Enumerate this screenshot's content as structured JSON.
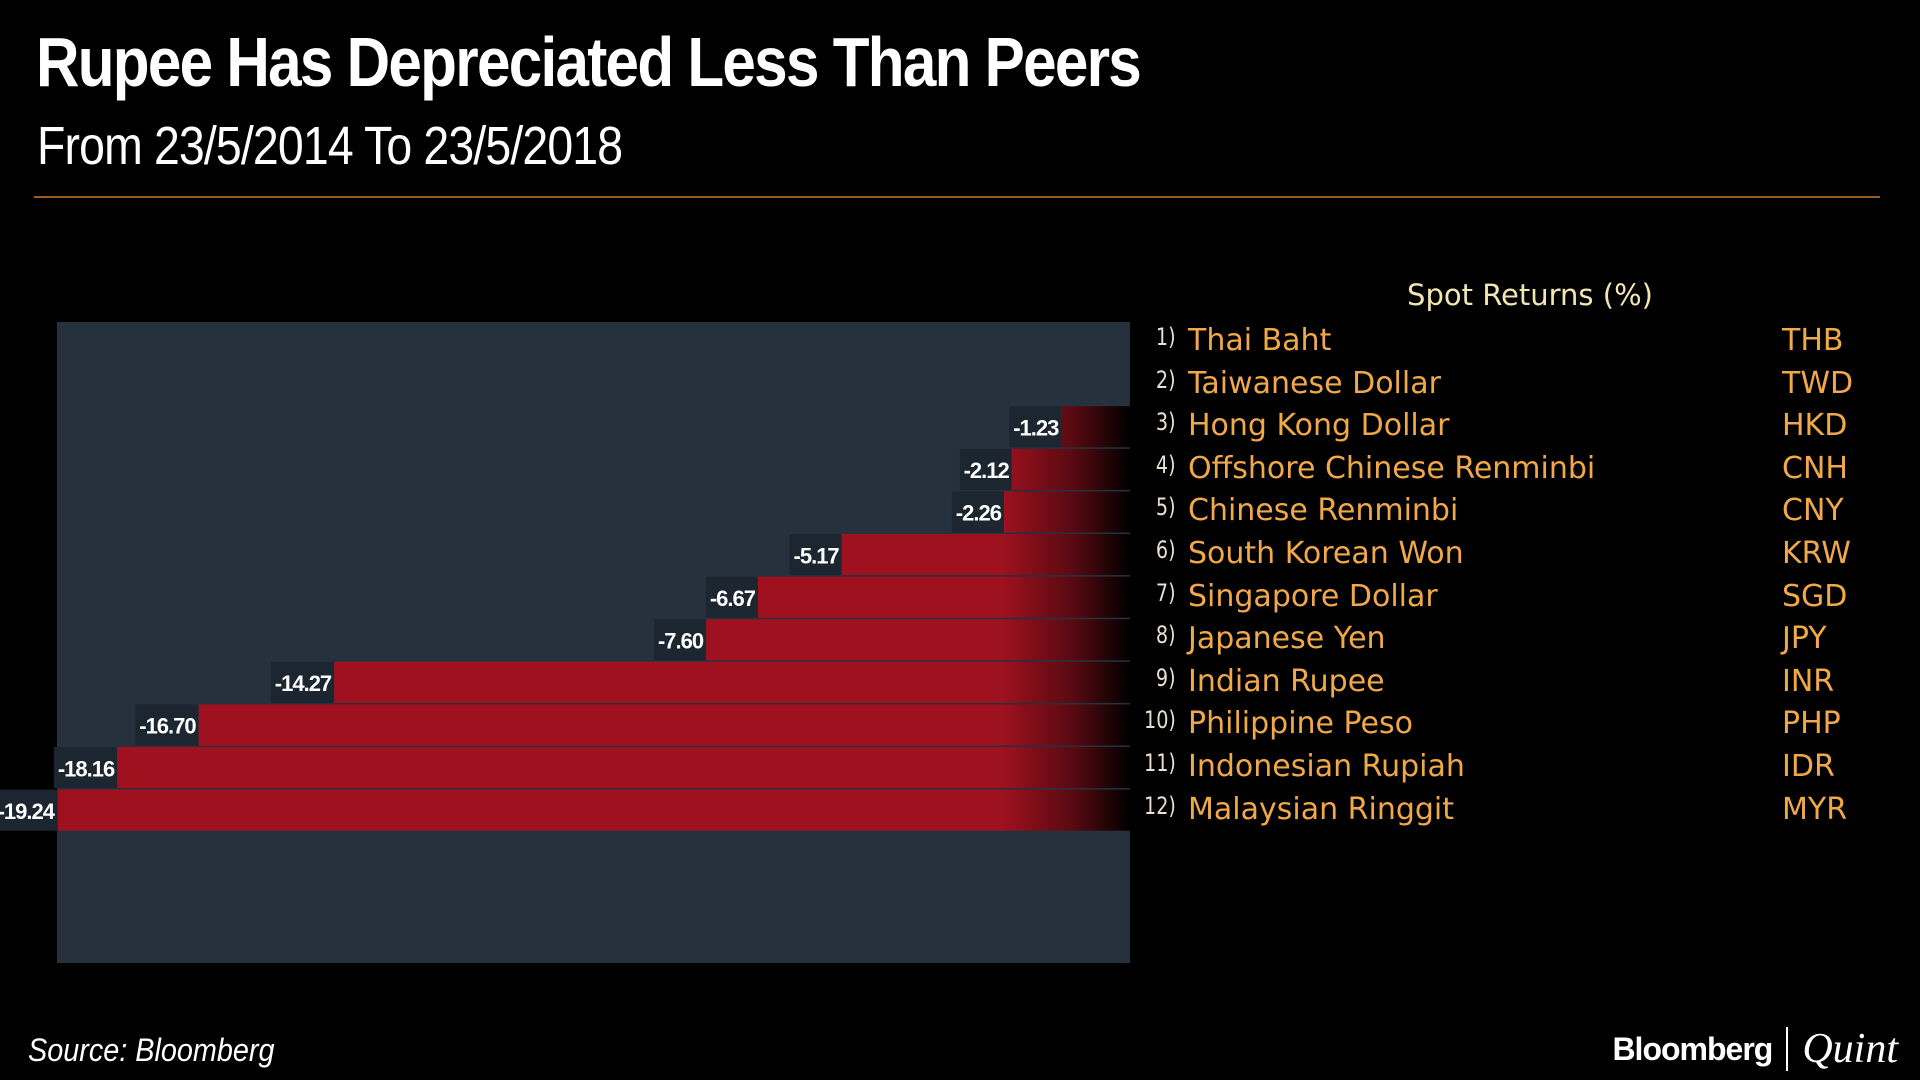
{
  "header": {
    "title": "Rupee Has Depreciated Less Than Peers",
    "subtitle": "From 23/5/2014 To 23/5/2018"
  },
  "chart_data": {
    "type": "bar",
    "orientation": "horizontal",
    "title": "Spot Returns (%)",
    "categories": [
      "Thai Baht",
      "Taiwanese Dollar",
      "Hong Kong Dollar",
      "Offshore Chinese Renminbi",
      "Chinese Renminbi",
      "South Korean Won",
      "Singapore Dollar",
      "Japanese Yen",
      "Indian Rupee",
      "Philippine Peso",
      "Indonesian Rupiah",
      "Malaysian Ringgit"
    ],
    "numbers": [
      "1)",
      "2)",
      "3)",
      "4)",
      "5)",
      "6)",
      "7)",
      "8)",
      "9)",
      "10)",
      "11)",
      "12)"
    ],
    "codes": [
      "THB",
      "TWD",
      "HKD",
      "CNH",
      "CNY",
      "KRW",
      "SGD",
      "JPY",
      "INR",
      "PHP",
      "IDR",
      "MYR"
    ],
    "values": [
      null,
      null,
      -1.23,
      -2.12,
      -2.26,
      -5.17,
      -6.67,
      -7.6,
      -14.27,
      -16.7,
      -18.16,
      -19.24
    ],
    "value_labels": [
      null,
      null,
      "-1.23",
      "-2.12",
      "-2.26",
      "-5.17",
      "-6.67",
      "-7.60",
      "-14.27",
      "-16.70",
      "-18.16",
      "-19.24"
    ],
    "xlim": [
      -19.24,
      0
    ],
    "colors": {
      "bar": "#a0111f",
      "panel": "#25323d",
      "legend_text": "#f0a848"
    }
  },
  "footer": {
    "source": "Source: Bloomberg",
    "logo_left": "Bloomberg",
    "logo_right": "Quint"
  }
}
